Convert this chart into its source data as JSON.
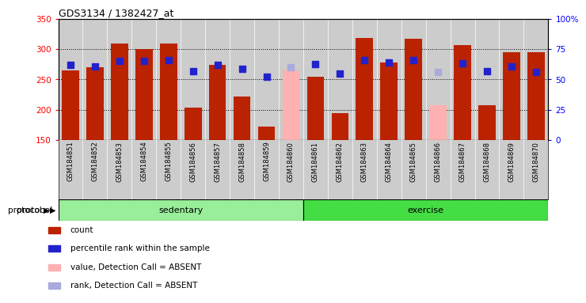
{
  "title": "GDS3134 / 1382427_at",
  "samples": [
    "GSM184851",
    "GSM184852",
    "GSM184853",
    "GSM184854",
    "GSM184855",
    "GSM184856",
    "GSM184857",
    "GSM184858",
    "GSM184859",
    "GSM184860",
    "GSM184861",
    "GSM184862",
    "GSM184863",
    "GSM184864",
    "GSM184865",
    "GSM184866",
    "GSM184867",
    "GSM184868",
    "GSM184869",
    "GSM184870"
  ],
  "count_values": [
    265,
    270,
    310,
    300,
    310,
    203,
    274,
    222,
    172,
    null,
    254,
    194,
    318,
    278,
    317,
    null,
    307,
    207,
    295,
    295
  ],
  "count_absent": [
    null,
    null,
    null,
    null,
    null,
    null,
    null,
    null,
    null,
    265,
    null,
    null,
    null,
    null,
    null,
    207,
    null,
    null,
    null,
    null
  ],
  "rank_values": [
    274,
    272,
    281,
    281,
    282,
    264,
    274,
    267,
    255,
    null,
    275,
    260,
    282,
    278,
    282,
    null,
    277,
    264,
    271,
    262
  ],
  "rank_absent": [
    null,
    null,
    null,
    null,
    null,
    null,
    null,
    null,
    null,
    270,
    null,
    null,
    null,
    null,
    null,
    262,
    null,
    null,
    null,
    null
  ],
  "group": [
    "sedentary",
    "sedentary",
    "sedentary",
    "sedentary",
    "sedentary",
    "sedentary",
    "sedentary",
    "sedentary",
    "sedentary",
    "sedentary",
    "exercise",
    "exercise",
    "exercise",
    "exercise",
    "exercise",
    "exercise",
    "exercise",
    "exercise",
    "exercise",
    "exercise"
  ],
  "ylim_left": [
    150,
    350
  ],
  "ylim_right": [
    0,
    100
  ],
  "yticks_left": [
    150,
    200,
    250,
    300,
    350
  ],
  "yticks_right": [
    0,
    25,
    50,
    75,
    100
  ],
  "bar_color": "#bb2200",
  "bar_absent_color": "#ffb0b0",
  "rank_color": "#2222cc",
  "rank_absent_color": "#aaaadd",
  "bg_color": "#cccccc",
  "protocol_label": "protocol",
  "group_colors": {
    "sedentary": "#99ee99",
    "exercise": "#44dd44"
  },
  "legend_items": [
    {
      "label": "count",
      "color": "#bb2200"
    },
    {
      "label": "percentile rank within the sample",
      "color": "#2222cc"
    },
    {
      "label": "value, Detection Call = ABSENT",
      "color": "#ffb0b0"
    },
    {
      "label": "rank, Detection Call = ABSENT",
      "color": "#aaaadd"
    }
  ]
}
